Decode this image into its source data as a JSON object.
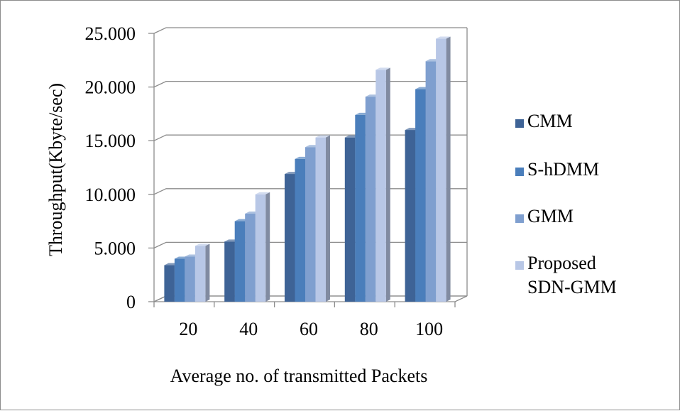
{
  "chart_data": {
    "type": "bar",
    "style": "3d-clustered-column",
    "categories": [
      "20",
      "40",
      "60",
      "80",
      "100"
    ],
    "series": [
      {
        "name": "CMM",
        "color": "#3e6396",
        "values": [
          3.4,
          5.6,
          11.9,
          15.3,
          16.0
        ]
      },
      {
        "name": "S-hDMM",
        "color": "#4a7ebb",
        "values": [
          4.0,
          7.5,
          13.3,
          17.4,
          19.8
        ]
      },
      {
        "name": "GMM",
        "color": "#7f9fcf",
        "values": [
          4.2,
          8.2,
          14.4,
          19.1,
          22.4
        ]
      },
      {
        "name": "Proposed SDN-GMM",
        "color": "#b8c7e6",
        "values": [
          5.2,
          10.0,
          15.3,
          21.6,
          24.5
        ]
      }
    ],
    "xlabel": "Average no. of transmitted Packets",
    "ylabel": "Throughput(Kbyte/sec)",
    "ylim": [
      0,
      25
    ],
    "yticks": [
      0,
      5,
      10,
      15,
      20,
      25
    ],
    "ytick_labels": [
      "0",
      "5.000",
      "10.000",
      "15.000",
      "20.000",
      "25.000"
    ],
    "grid": true,
    "legend_position": "right"
  }
}
